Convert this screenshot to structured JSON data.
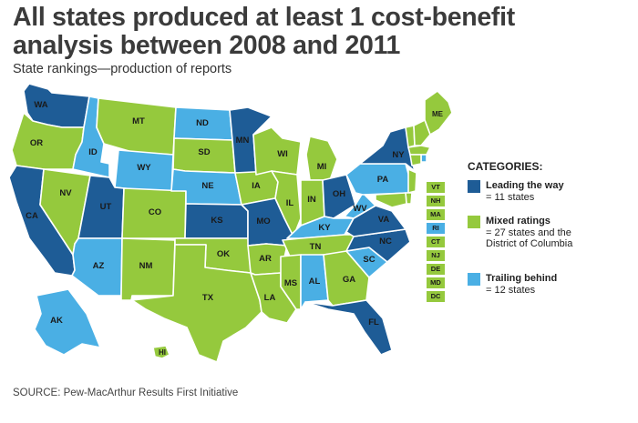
{
  "title": "All states produced at least 1 cost-benefit analysis between 2008 and 2011",
  "subtitle": "State rankings—production of reports",
  "colors": {
    "lead": "#1e5c96",
    "mixed": "#95c93d",
    "trail": "#4aafe4"
  },
  "states": [
    {
      "abbr": "WA",
      "cat": "lead"
    },
    {
      "abbr": "OR",
      "cat": "mixed"
    },
    {
      "abbr": "CA",
      "cat": "lead"
    },
    {
      "abbr": "ID",
      "cat": "trail"
    },
    {
      "abbr": "NV",
      "cat": "mixed"
    },
    {
      "abbr": "MT",
      "cat": "mixed"
    },
    {
      "abbr": "WY",
      "cat": "trail"
    },
    {
      "abbr": "UT",
      "cat": "lead"
    },
    {
      "abbr": "AZ",
      "cat": "trail"
    },
    {
      "abbr": "CO",
      "cat": "mixed"
    },
    {
      "abbr": "NM",
      "cat": "mixed"
    },
    {
      "abbr": "ND",
      "cat": "trail"
    },
    {
      "abbr": "SD",
      "cat": "mixed"
    },
    {
      "abbr": "NE",
      "cat": "trail"
    },
    {
      "abbr": "KS",
      "cat": "lead"
    },
    {
      "abbr": "OK",
      "cat": "mixed"
    },
    {
      "abbr": "TX",
      "cat": "mixed"
    },
    {
      "abbr": "MN",
      "cat": "lead"
    },
    {
      "abbr": "IA",
      "cat": "mixed"
    },
    {
      "abbr": "MO",
      "cat": "lead"
    },
    {
      "abbr": "AR",
      "cat": "mixed"
    },
    {
      "abbr": "LA",
      "cat": "mixed"
    },
    {
      "abbr": "WI",
      "cat": "mixed"
    },
    {
      "abbr": "IL",
      "cat": "mixed"
    },
    {
      "abbr": "MI",
      "cat": "mixed"
    },
    {
      "abbr": "IN",
      "cat": "mixed"
    },
    {
      "abbr": "OH",
      "cat": "lead"
    },
    {
      "abbr": "KY",
      "cat": "trail"
    },
    {
      "abbr": "TN",
      "cat": "mixed"
    },
    {
      "abbr": "MS",
      "cat": "mixed"
    },
    {
      "abbr": "AL",
      "cat": "trail"
    },
    {
      "abbr": "GA",
      "cat": "mixed"
    },
    {
      "abbr": "FL",
      "cat": "lead"
    },
    {
      "abbr": "SC",
      "cat": "trail"
    },
    {
      "abbr": "NC",
      "cat": "lead"
    },
    {
      "abbr": "VA",
      "cat": "lead"
    },
    {
      "abbr": "WV",
      "cat": "trail"
    },
    {
      "abbr": "PA",
      "cat": "trail"
    },
    {
      "abbr": "NY",
      "cat": "lead"
    },
    {
      "abbr": "ME",
      "cat": "mixed"
    },
    {
      "abbr": "AK",
      "cat": "trail"
    },
    {
      "abbr": "HI",
      "cat": "mixed"
    }
  ],
  "small_states": [
    {
      "abbr": "VT",
      "cat": "mixed"
    },
    {
      "abbr": "NH",
      "cat": "mixed"
    },
    {
      "abbr": "MA",
      "cat": "mixed"
    },
    {
      "abbr": "RI",
      "cat": "trail"
    },
    {
      "abbr": "CT",
      "cat": "mixed"
    },
    {
      "abbr": "NJ",
      "cat": "mixed"
    },
    {
      "abbr": "DE",
      "cat": "mixed"
    },
    {
      "abbr": "MD",
      "cat": "mixed"
    },
    {
      "abbr": "DC",
      "cat": "mixed"
    }
  ],
  "legend": {
    "title": "CATEGORIES:",
    "items": [
      {
        "cat": "lead",
        "head": "Leading the way",
        "sub": "= 11 states"
      },
      {
        "cat": "mixed",
        "head": "Mixed ratings",
        "sub": "= 27 states and the District of Columbia"
      },
      {
        "cat": "trail",
        "head": "Trailing behind",
        "sub": "= 12 states"
      }
    ]
  },
  "source": "SOURCE: Pew-MacArthur Results First Initiative"
}
